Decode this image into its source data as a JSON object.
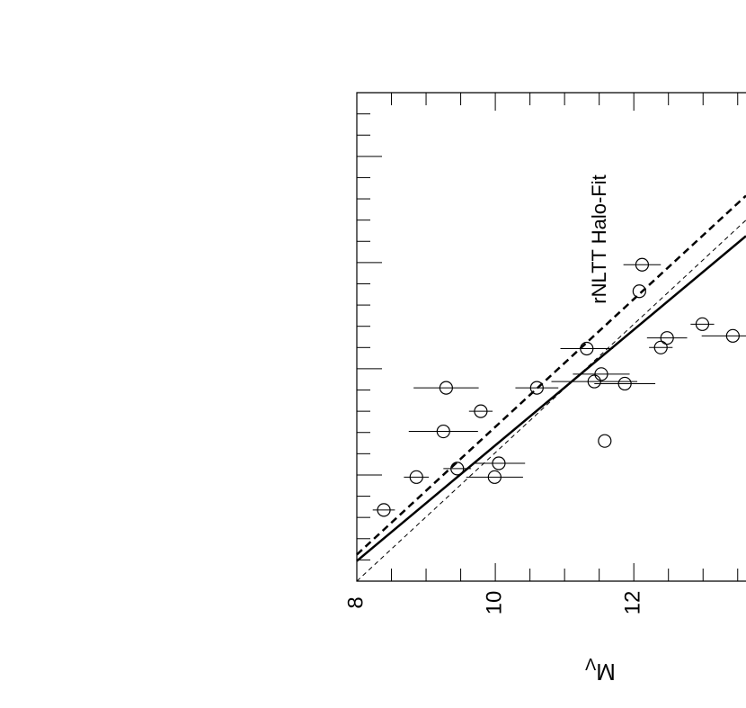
{
  "chart_data": {
    "type": "scatter",
    "annotation": "rNLTT Halo-Fit",
    "xlabel": "M",
    "xlabel_sub": "V",
    "xlim": [
      8,
      13.62
    ],
    "ylim": [
      0,
      4.6
    ],
    "xticks": [
      8,
      10,
      12
    ],
    "xminorticks": [
      8.5,
      9,
      9.5,
      10.5,
      11,
      11.5,
      12.5,
      13,
      13.5
    ],
    "yticks": [
      0,
      1,
      2,
      3,
      4
    ],
    "yminorticks": [
      0.2,
      0.4,
      0.6,
      0.8,
      1.2,
      1.4,
      1.6,
      1.8,
      2.2,
      2.4,
      2.6,
      2.8,
      3.2,
      3.4,
      3.6,
      3.8,
      4.2,
      4.4
    ],
    "color": "#000000",
    "x": [
      8.39,
      8.86,
      9.25,
      9.29,
      9.45,
      9.79,
      9.99,
      10.05,
      10.6,
      11.32,
      11.43,
      11.53,
      11.58,
      11.87,
      12.08,
      12.12,
      12.39,
      12.48,
      12.99,
      13.43
    ],
    "y": [
      0.67,
      0.98,
      1.41,
      1.82,
      1.06,
      1.6,
      0.98,
      1.11,
      1.82,
      2.19,
      1.88,
      1.95,
      1.32,
      1.86,
      2.73,
      2.98,
      2.2,
      2.29,
      2.42,
      2.31
    ],
    "xerr": [
      0.16,
      0.18,
      0.5,
      0.47,
      0.2,
      0.17,
      0.41,
      0.38,
      0.31,
      0.38,
      0.62,
      0.41,
      0,
      0.44,
      0,
      0.27,
      0.17,
      0.29,
      0.17,
      0.45
    ],
    "lines": [
      {
        "dash": "none",
        "width": 2.5,
        "x": [
          8,
          13.62
        ],
        "y": [
          0.19,
          3.25
        ]
      },
      {
        "dash": "8,5",
        "width": 2.5,
        "x": [
          8,
          13.62
        ],
        "y": [
          0.25,
          3.63
        ]
      },
      {
        "dash": "5,4",
        "width": 1,
        "x": [
          8,
          13.62
        ],
        "y": [
          0,
          3.4
        ]
      }
    ]
  }
}
